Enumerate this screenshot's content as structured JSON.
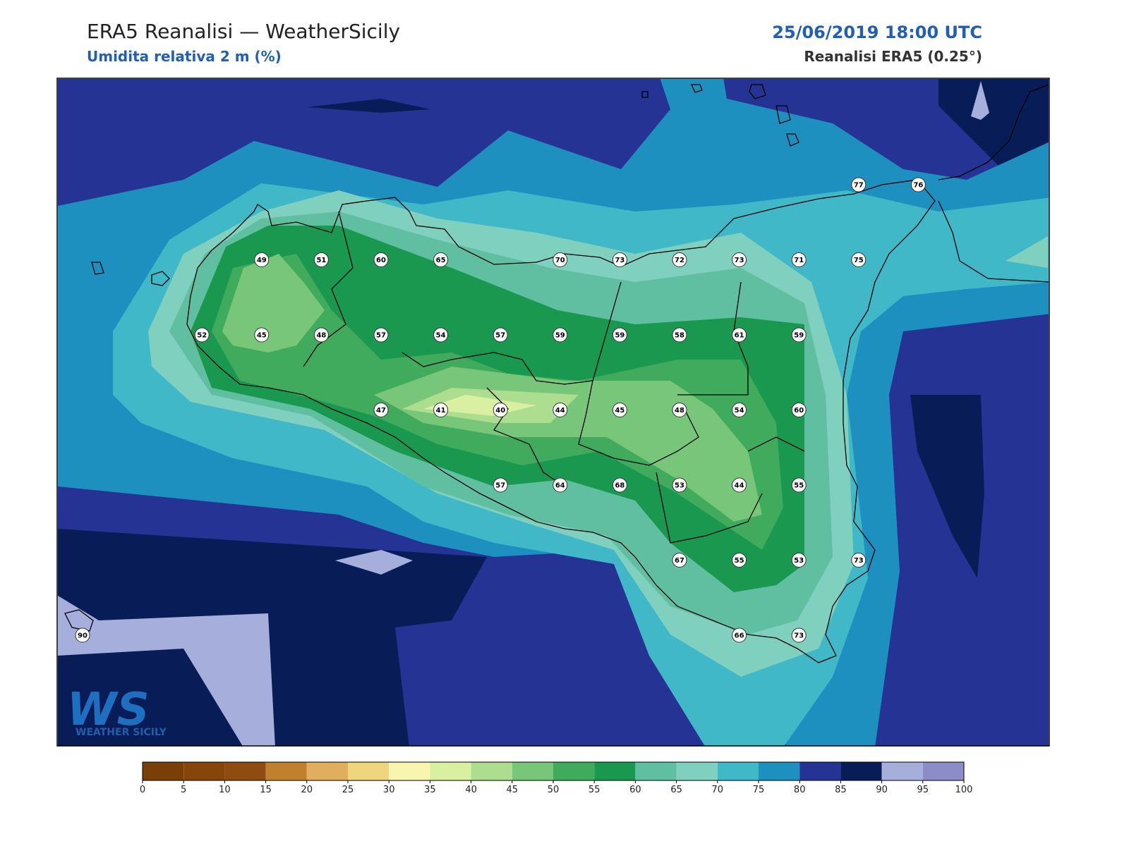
{
  "header": {
    "title": "ERA5 Reanalisi — WeatherSicily",
    "subtitle": "Umidita relativa 2 m (%)",
    "datetime": "25/06/2019 18:00 UTC",
    "source": "Reanalisi ERA5 (0.25°)"
  },
  "stations": {
    "rows": [
      [
        null,
        null,
        null,
        null,
        null,
        null,
        null,
        null,
        null,
        null,
        null,
        null,
        null,
        77,
        76
      ],
      [
        null,
        null,
        null,
        49,
        51,
        60,
        65,
        null,
        70,
        73,
        72,
        73,
        71,
        75,
        null
      ],
      [
        null,
        null,
        52,
        45,
        48,
        57,
        54,
        57,
        59,
        59,
        58,
        61,
        59,
        null,
        null
      ],
      [
        null,
        null,
        null,
        null,
        null,
        47,
        41,
        40,
        44,
        45,
        48,
        54,
        60,
        null,
        null
      ],
      [
        null,
        null,
        null,
        null,
        null,
        null,
        null,
        57,
        64,
        68,
        53,
        44,
        55,
        null,
        null
      ],
      [
        null,
        null,
        null,
        null,
        null,
        null,
        null,
        null,
        null,
        null,
        67,
        55,
        53,
        73,
        null
      ],
      [
        90,
        null,
        null,
        null,
        null,
        null,
        null,
        null,
        null,
        null,
        null,
        66,
        73,
        null,
        null
      ]
    ]
  },
  "colorbar": {
    "ticks": [
      0,
      5,
      10,
      15,
      20,
      25,
      30,
      35,
      40,
      45,
      50,
      55,
      60,
      65,
      70,
      75,
      80,
      85,
      90,
      95,
      100
    ],
    "colors": [
      "#7a3e08",
      "#86450b",
      "#8f4c10",
      "#c0802e",
      "#dfae5e",
      "#eed57e",
      "#f7f5b0",
      "#d9f0a3",
      "#addd8e",
      "#78c679",
      "#41ab5d",
      "#1a9850",
      "#5fbfa0",
      "#80d0c0",
      "#40b8c8",
      "#1e90c0",
      "#253494",
      "#081d58",
      "#a6afdc",
      "#8c8cc8"
    ]
  },
  "logo": {
    "mark": "WS",
    "name": "WEATHER SICILY"
  }
}
